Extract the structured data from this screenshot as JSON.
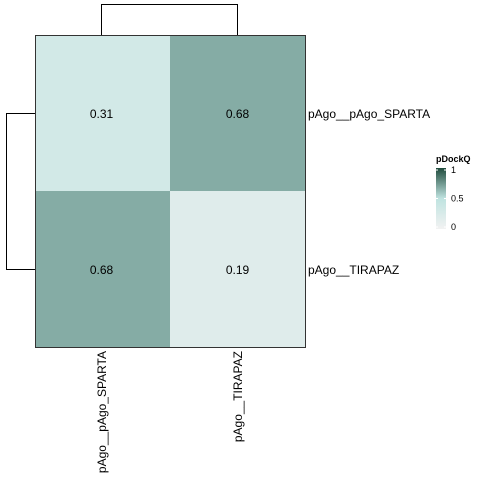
{
  "chart_data": {
    "type": "heatmap",
    "rows": [
      "pAgo__pAgo_SPARTA",
      "pAgo__TIRAPAZ"
    ],
    "columns": [
      "pAgo__pAgo_SPARTA",
      "pAgo__TIRAPAZ"
    ],
    "values": [
      [
        0.31,
        0.68
      ],
      [
        0.68,
        0.19
      ]
    ],
    "cell_labels": [
      [
        "0.31",
        "0.68"
      ],
      [
        "0.68",
        "0.19"
      ]
    ],
    "color_scale": {
      "low": "#f2f2f2",
      "mid": "#bfe3e0",
      "high": "#1f4a3c",
      "range": [
        0,
        1
      ]
    },
    "legend": {
      "title": "pDockQ",
      "ticks": [
        {
          "value": 1,
          "label": "1"
        },
        {
          "value": 0.5,
          "label": "0.5"
        },
        {
          "value": 0,
          "label": "0"
        }
      ],
      "position": "right"
    },
    "dendrograms": {
      "rows": true,
      "columns": true
    }
  }
}
